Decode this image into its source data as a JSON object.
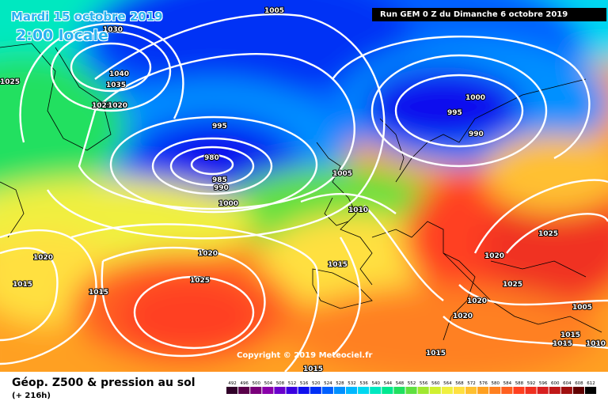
{
  "header": {
    "date": "Mardi 15 octobre 2019",
    "time": "2:00 locale",
    "run": "Run GEM 0 Z du Dimanche 6 octobre 2019"
  },
  "copyright": "Copyright © 2019 Meteociel.fr",
  "legend": {
    "title": "Géop. Z500 & pression au sol",
    "lead": "(+ 216h)",
    "scale": [
      "492",
      "496",
      "500",
      "504",
      "508",
      "512",
      "516",
      "520",
      "524",
      "528",
      "532",
      "536",
      "540",
      "544",
      "548",
      "552",
      "556",
      "560",
      "564",
      "568",
      "572",
      "576",
      "580",
      "584",
      "588",
      "592",
      "596",
      "600",
      "604",
      "608",
      "612"
    ],
    "scale_colors": [
      "#300028",
      "#5a004a",
      "#7a007a",
      "#8a00aa",
      "#6a00cc",
      "#3a00e0",
      "#1010ee",
      "#0030f5",
      "#0060ff",
      "#0090ff",
      "#00b8ff",
      "#00d8f0",
      "#00e8c0",
      "#00e890",
      "#20e060",
      "#60e040",
      "#a0e830",
      "#d0f030",
      "#f0f040",
      "#ffe040",
      "#ffc030",
      "#ffa020",
      "#ff8020",
      "#ff6020",
      "#ff4020",
      "#f03020",
      "#d82020",
      "#c01818",
      "#a01010",
      "#600000",
      "#000000"
    ]
  },
  "isobars": {
    "labels": [
      "1030",
      "1040",
      "1035",
      "1025",
      "1020",
      "1025",
      "995",
      "980",
      "985",
      "990",
      "1000",
      "1005",
      "1005",
      "1000",
      "995",
      "990",
      "1010",
      "1015",
      "1020",
      "1025",
      "1020",
      "1025",
      "1025",
      "1020",
      "1020",
      "1015",
      "1015",
      "1015",
      "1020",
      "1015",
      "1010",
      "1005",
      "1015",
      "1015"
    ]
  }
}
